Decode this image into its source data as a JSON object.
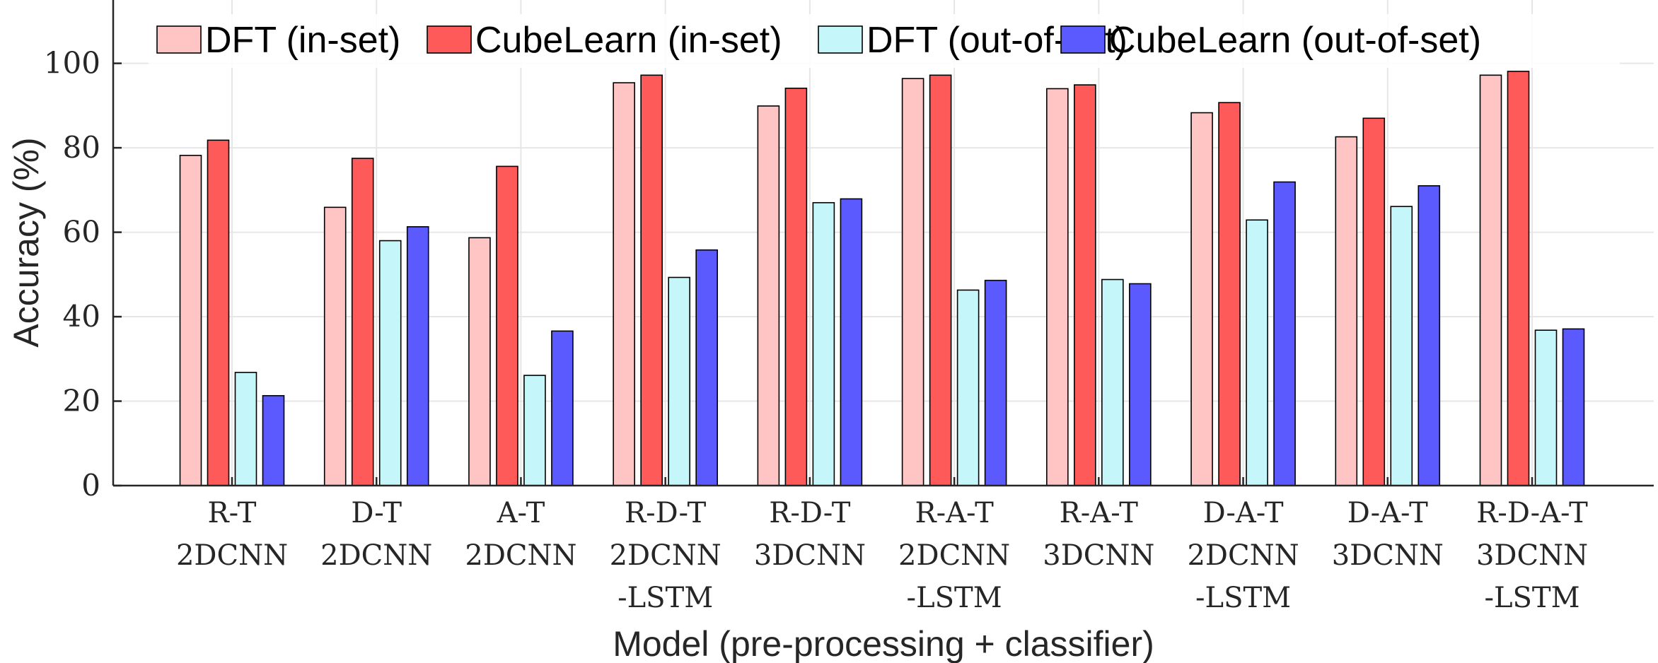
{
  "chart_data": {
    "type": "bar",
    "title": "",
    "xlabel": "Model (pre-processing + classifier)",
    "ylabel": "Accuracy (%)",
    "ylim": [
      0,
      115
    ],
    "yticks": [
      0,
      20,
      40,
      60,
      80,
      100
    ],
    "grid": true,
    "legend_position": "top",
    "categories": [
      [
        "R-T",
        "2DCNN"
      ],
      [
        "D-T",
        "2DCNN"
      ],
      [
        "A-T",
        "2DCNN"
      ],
      [
        "R-D-T",
        "2DCNN",
        "-LSTM"
      ],
      [
        "R-D-T",
        "3DCNN"
      ],
      [
        "R-A-T",
        "2DCNN",
        "-LSTM"
      ],
      [
        "R-A-T",
        "3DCNN"
      ],
      [
        "D-A-T",
        "2DCNN",
        "-LSTM"
      ],
      [
        "D-A-T",
        "3DCNN"
      ],
      [
        "R-D-A-T",
        "3DCNN",
        "-LSTM"
      ]
    ],
    "series": [
      {
        "name": "DFT (in-set)",
        "color": "#ffc4c4",
        "values": [
          78.2,
          65.9,
          58.7,
          95.4,
          89.9,
          96.4,
          94.0,
          88.3,
          82.6,
          97.2
        ]
      },
      {
        "name": "CubeLearn (in-set)",
        "color": "#ff5a5a",
        "values": [
          81.8,
          77.5,
          75.6,
          97.2,
          94.1,
          97.2,
          94.9,
          90.7,
          87.0,
          98.1
        ]
      },
      {
        "name": "DFT (out-of-set)",
        "color": "#c4f6fa",
        "values": [
          26.8,
          58.0,
          26.1,
          49.3,
          67.0,
          46.3,
          48.8,
          62.9,
          66.1,
          36.8
        ]
      },
      {
        "name": "CubeLearn (out-of-set)",
        "color": "#5a5aff",
        "values": [
          21.3,
          61.3,
          36.6,
          55.8,
          67.9,
          48.6,
          47.8,
          71.9,
          71.0,
          37.1
        ]
      }
    ]
  }
}
